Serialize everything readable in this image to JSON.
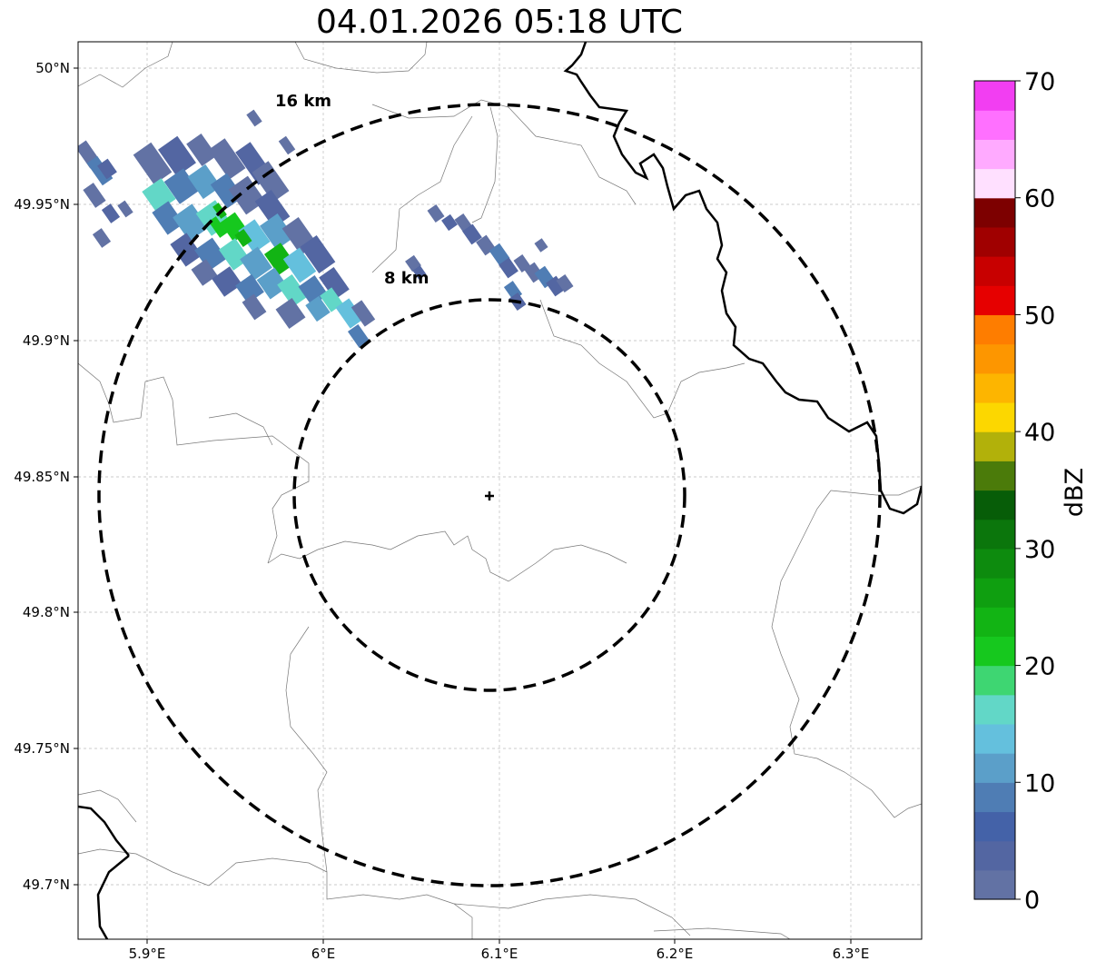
{
  "title": "04.01.2026 05:18 UTC",
  "map": {
    "lon_ticks": [
      "5.9°E",
      "6°E",
      "6.1°E",
      "6.2°E",
      "6.3°E"
    ],
    "lat_ticks": [
      "50°N",
      "49.95°N",
      "49.9°N",
      "49.85°N",
      "49.8°N",
      "49.75°N",
      "49.7°N"
    ],
    "rings": [
      {
        "label": "16 km",
        "radius_km": 16
      },
      {
        "label": "8 km",
        "radius_km": 8
      }
    ],
    "radar_site": "radar-site-marker"
  },
  "colorbar": {
    "label": "dBZ",
    "ticks": [
      "0",
      "10",
      "20",
      "30",
      "40",
      "50",
      "60",
      "70"
    ],
    "colors": [
      "#6272a4",
      "#5366a2",
      "#4462a8",
      "#4f7db4",
      "#5b9fc9",
      "#64c0dd",
      "#62d7c7",
      "#3ed672",
      "#16c81e",
      "#12b414",
      "#0f9f10",
      "#0d8b0e",
      "#0b760c",
      "#075d08",
      "#4b7b0a",
      "#b2b10a",
      "#fcd700",
      "#fdb500",
      "#fd9600",
      "#fe7d00",
      "#e60000",
      "#c80000",
      "#a00000",
      "#7d0000",
      "#ffe0ff",
      "#ffaaff",
      "#ff70ff",
      "#f23ef2"
    ]
  },
  "icons": [
    "radar-site-marker"
  ]
}
